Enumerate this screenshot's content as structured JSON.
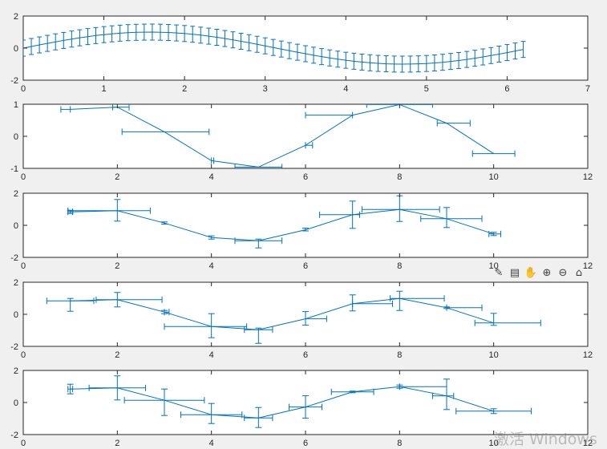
{
  "colors": {
    "series": "#0072bd",
    "axes": "#262626",
    "background": "#f0f0f0",
    "plot_area": "#ffffff"
  },
  "toolbar": {
    "items": [
      {
        "name": "brush-icon",
        "glyph": "✎"
      },
      {
        "name": "datatip-icon",
        "glyph": "▤"
      },
      {
        "name": "pan-icon",
        "glyph": "✋"
      },
      {
        "name": "zoom-in-icon",
        "glyph": "⊕"
      },
      {
        "name": "zoom-out-icon",
        "glyph": "⊖"
      },
      {
        "name": "home-icon",
        "glyph": "⌂"
      }
    ]
  },
  "watermark": {
    "text": "激活 Windows"
  },
  "chart_data": [
    {
      "type": "line",
      "xlim": [
        0,
        7
      ],
      "ylim": [
        -2,
        2
      ],
      "xticks": [
        "0",
        "1",
        "2",
        "3",
        "4",
        "5",
        "6",
        "7"
      ],
      "yticks": [
        "-2",
        "0",
        "2"
      ],
      "grid": false,
      "series": [
        {
          "function": "sin",
          "x_start": 0,
          "x_end": 6.2,
          "x_step": 0.1,
          "error": 0.5
        }
      ]
    },
    {
      "type": "line",
      "xlim": [
        0,
        12
      ],
      "ylim": [
        -1,
        1
      ],
      "xticks": [
        "0",
        "2",
        "4",
        "6",
        "8",
        "10",
        "12"
      ],
      "yticks": [
        "-1",
        "0",
        "1"
      ],
      "grid": false,
      "series": [
        {
          "x": [
            1,
            2,
            3,
            4,
            5,
            6,
            7,
            8,
            9,
            10
          ],
          "y": [
            0.84,
            0.91,
            0.14,
            -0.76,
            -0.96,
            -0.28,
            0.66,
            0.99,
            0.41,
            -0.54
          ],
          "xneg": [
            0.2,
            0.1,
            0.9,
            0.0,
            0.5,
            0.0,
            1.0,
            0.7,
            0.2,
            0.45
          ],
          "xpos": [
            0.0,
            0.25,
            0.95,
            0.05,
            0.5,
            0.15,
            0.0,
            0.7,
            0.5,
            0.45
          ]
        }
      ]
    },
    {
      "type": "line",
      "xlim": [
        0,
        12
      ],
      "ylim": [
        -2,
        2
      ],
      "xticks": [
        "0",
        "2",
        "4",
        "6",
        "8",
        "10",
        "12"
      ],
      "yticks": [
        "-2",
        "0",
        "2"
      ],
      "grid": false,
      "series": [
        {
          "x": [
            1,
            2,
            3,
            4,
            5,
            6,
            7,
            8,
            9,
            10
          ],
          "y": [
            0.84,
            0.91,
            0.14,
            -0.76,
            -0.96,
            -0.28,
            0.66,
            0.99,
            0.41,
            -0.54
          ],
          "yneg": [
            0.1,
            0.65,
            0.07,
            0.1,
            0.45,
            0.07,
            0.85,
            0.75,
            0.55,
            0.1
          ],
          "ypos": [
            0.1,
            0.7,
            0.07,
            0.1,
            0.1,
            0.1,
            0.85,
            0.85,
            0.7,
            0.1
          ],
          "xneg": [
            0.05,
            1.05,
            0.0,
            0.0,
            0.5,
            0.0,
            0.7,
            0.8,
            0.55,
            0.1
          ],
          "xpos": [
            0.05,
            0.7,
            0.0,
            0.0,
            0.5,
            0.0,
            0.15,
            0.85,
            0.75,
            0.15
          ]
        }
      ]
    },
    {
      "type": "line",
      "xlim": [
        0,
        12
      ],
      "ylim": [
        -2,
        2
      ],
      "xticks": [
        "0",
        "2",
        "4",
        "6",
        "8",
        "10",
        "12"
      ],
      "yticks": [
        "-2",
        "0",
        "2"
      ],
      "grid": false,
      "series": [
        {
          "x": [
            1,
            2,
            3,
            4,
            5,
            6,
            7,
            8,
            9,
            10
          ],
          "y": [
            0.84,
            0.91,
            0.14,
            -0.76,
            -0.96,
            -0.28,
            0.66,
            0.99,
            0.41,
            -0.54
          ],
          "yneg": [
            0.65,
            0.45,
            0.1,
            0.7,
            0.85,
            0.4,
            0.45,
            0.75,
            0.05,
            0.15
          ],
          "ypos": [
            0.15,
            0.45,
            0.1,
            0.8,
            0.1,
            0.45,
            0.55,
            0.45,
            0.05,
            0.6
          ],
          "xneg": [
            0.5,
            0.45,
            0.0,
            1.0,
            0.3,
            0.0,
            0.0,
            0.2,
            0.0,
            0.4
          ],
          "xpos": [
            0.5,
            0.95,
            0.1,
            0.75,
            0.3,
            0.45,
            0.85,
            0.95,
            0.75,
            1.0
          ]
        }
      ]
    },
    {
      "type": "line",
      "xlim": [
        0,
        12
      ],
      "ylim": [
        -2,
        2
      ],
      "xticks": [
        "0",
        "2",
        "4",
        "6",
        "8",
        "10",
        "12"
      ],
      "yticks": [
        "-2",
        "0",
        "2"
      ],
      "grid": false,
      "series": [
        {
          "x": [
            1,
            2,
            3,
            4,
            5,
            6,
            7,
            8,
            9,
            10
          ],
          "y": [
            0.84,
            0.91,
            0.14,
            -0.76,
            -0.96,
            -0.28,
            0.66,
            0.99,
            0.41,
            -0.54
          ],
          "yneg": [
            0.3,
            0.75,
            0.95,
            0.55,
            0.6,
            0.7,
            0.05,
            0.1,
            0.85,
            0.15
          ],
          "ypos": [
            0.3,
            0.75,
            0.7,
            0.7,
            0.65,
            0.7,
            0.05,
            0.1,
            1.05,
            0.15
          ],
          "xneg": [
            0.05,
            0.6,
            0.85,
            0.65,
            0.3,
            0.35,
            0.45,
            0.0,
            0.3,
            0.8
          ],
          "xpos": [
            0.05,
            0.6,
            0.85,
            0.65,
            0.3,
            0.35,
            0.45,
            1.0,
            0.15,
            0.8
          ]
        }
      ]
    }
  ]
}
